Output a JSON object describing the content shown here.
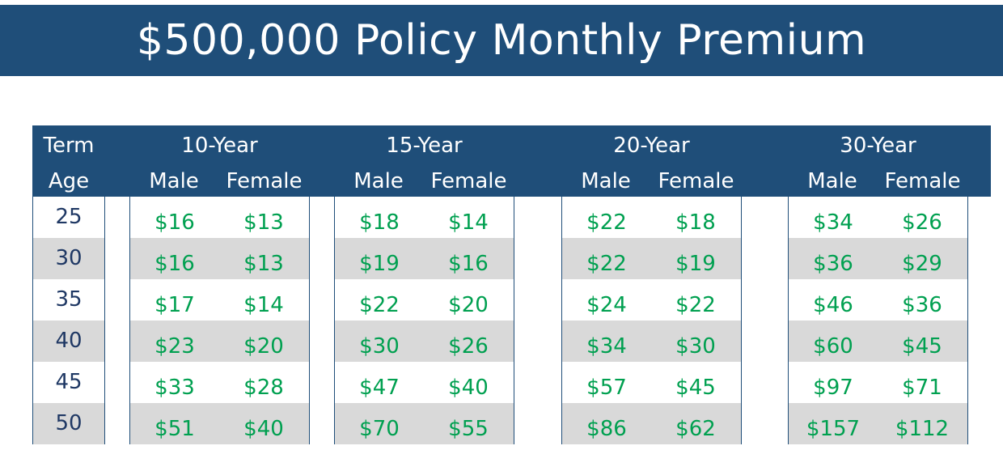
{
  "title": "$500,000 Policy Monthly Premium",
  "header": {
    "term_label": "Term",
    "age_label": "Age",
    "male_label": "Male",
    "female_label": "Female"
  },
  "terms": [
    "10-Year",
    "15-Year",
    "20-Year",
    "30-Year"
  ],
  "ages": [
    "25",
    "30",
    "35",
    "40",
    "45",
    "50"
  ],
  "premiums": [
    [
      [
        "$16",
        "$13"
      ],
      [
        "$16",
        "$13"
      ],
      [
        "$17",
        "$14"
      ],
      [
        "$23",
        "$20"
      ],
      [
        "$33",
        "$28"
      ],
      [
        "$51",
        "$40"
      ]
    ],
    [
      [
        "$18",
        "$14"
      ],
      [
        "$19",
        "$16"
      ],
      [
        "$22",
        "$20"
      ],
      [
        "$30",
        "$26"
      ],
      [
        "$47",
        "$40"
      ],
      [
        "$70",
        "$55"
      ]
    ],
    [
      [
        "$22",
        "$18"
      ],
      [
        "$22",
        "$19"
      ],
      [
        "$24",
        "$22"
      ],
      [
        "$34",
        "$30"
      ],
      [
        "$57",
        "$45"
      ],
      [
        "$86",
        "$62"
      ]
    ],
    [
      [
        "$34",
        "$26"
      ],
      [
        "$36",
        "$29"
      ],
      [
        "$46",
        "$36"
      ],
      [
        "$60",
        "$45"
      ],
      [
        "$97",
        "$71"
      ],
      [
        "$157",
        "$112"
      ]
    ]
  ],
  "colors": {
    "header_bg": "#1f4e79",
    "row_alt": "#d9d9d9",
    "premium_text": "#00a050",
    "age_text": "#1f3864"
  }
}
